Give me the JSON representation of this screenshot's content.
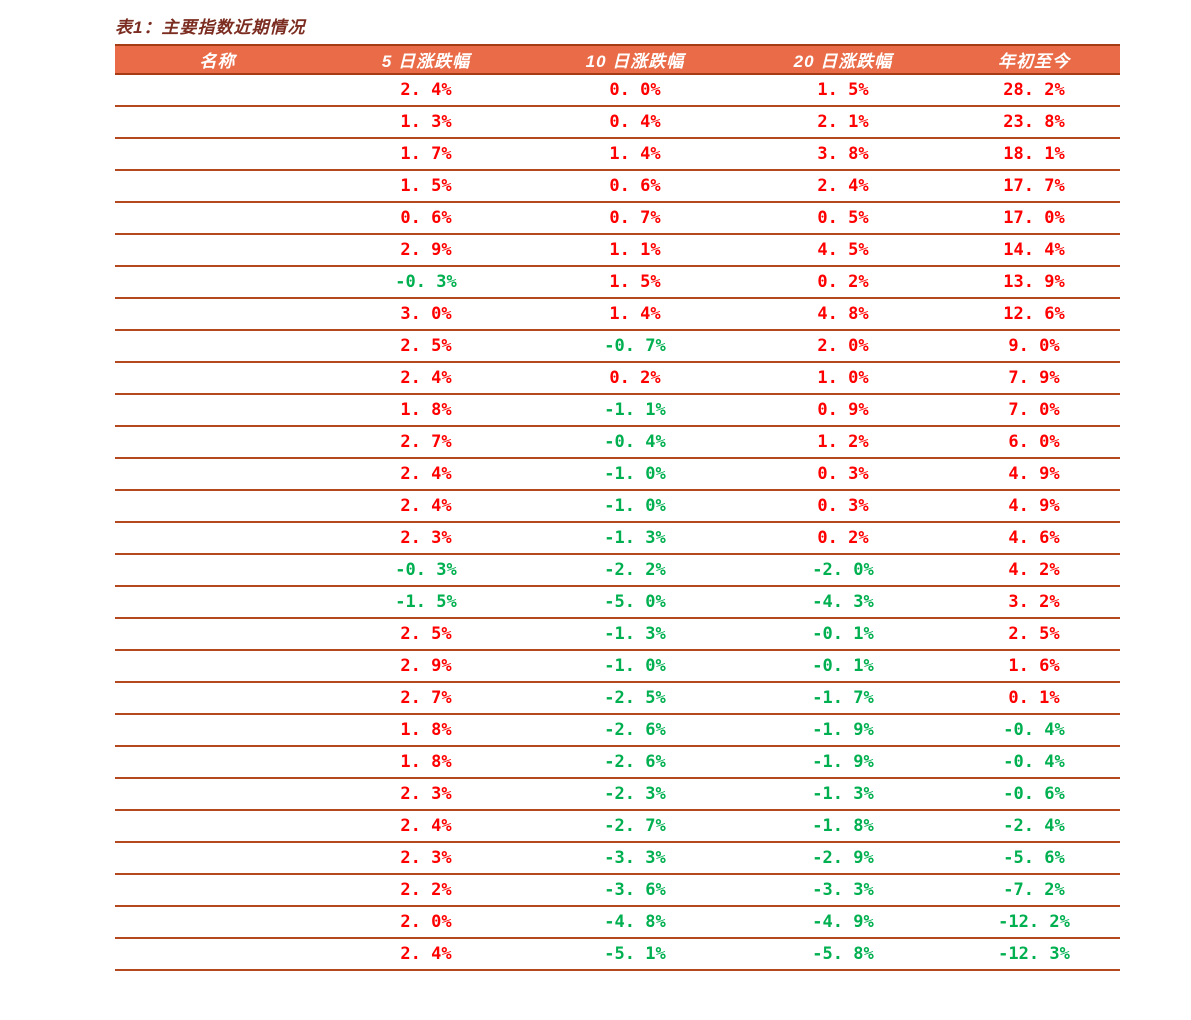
{
  "title": {
    "text": "表1：主要指数近期情况"
  },
  "colors": {
    "title": "#7C2D21",
    "header_bg": "#EA6B47",
    "header_text": "#FFFFFF",
    "header_border": "#A63C16",
    "row_border": "#B4481E",
    "positive": "#FF0000",
    "negative": "#00B050",
    "page_bg": "#FFFFFF"
  },
  "table": {
    "columns": [
      "名称",
      "5 日涨跌幅",
      "10 日涨跌幅",
      "20 日涨跌幅",
      "年初至今"
    ],
    "rows": [
      {
        "cells": [
          "",
          "2. 4%",
          "0. 0%",
          "1. 5%",
          "28. 2%"
        ]
      },
      {
        "cells": [
          "",
          "1. 3%",
          "0. 4%",
          "2. 1%",
          "23. 8%"
        ]
      },
      {
        "cells": [
          "",
          "1. 7%",
          "1. 4%",
          "3. 8%",
          "18. 1%"
        ]
      },
      {
        "cells": [
          "",
          "1. 5%",
          "0. 6%",
          "2. 4%",
          "17. 7%"
        ]
      },
      {
        "cells": [
          "",
          "0. 6%",
          "0. 7%",
          "0. 5%",
          "17. 0%"
        ]
      },
      {
        "cells": [
          "",
          "2. 9%",
          "1. 1%",
          "4. 5%",
          "14. 4%"
        ]
      },
      {
        "cells": [
          "",
          "-0. 3%",
          "1. 5%",
          "0. 2%",
          "13. 9%"
        ]
      },
      {
        "cells": [
          "",
          "3. 0%",
          "1. 4%",
          "4. 8%",
          "12. 6%"
        ]
      },
      {
        "cells": [
          "",
          "2. 5%",
          "-0. 7%",
          "2. 0%",
          "9. 0%"
        ]
      },
      {
        "cells": [
          "",
          "2. 4%",
          "0. 2%",
          "1. 0%",
          "7. 9%"
        ]
      },
      {
        "cells": [
          "",
          "1. 8%",
          "-1. 1%",
          "0. 9%",
          "7. 0%"
        ]
      },
      {
        "cells": [
          "",
          "2. 7%",
          "-0. 4%",
          "1. 2%",
          "6. 0%"
        ]
      },
      {
        "cells": [
          "",
          "2. 4%",
          "-1. 0%",
          "0. 3%",
          "4. 9%"
        ]
      },
      {
        "cells": [
          "",
          "2. 4%",
          "-1. 0%",
          "0. 3%",
          "4. 9%"
        ]
      },
      {
        "cells": [
          "",
          "2. 3%",
          "-1. 3%",
          "0. 2%",
          "4. 6%"
        ]
      },
      {
        "cells": [
          "",
          "-0. 3%",
          "-2. 2%",
          "-2. 0%",
          "4. 2%"
        ]
      },
      {
        "cells": [
          "",
          "-1. 5%",
          "-5. 0%",
          "-4. 3%",
          "3. 2%"
        ]
      },
      {
        "cells": [
          "",
          "2. 5%",
          "-1. 3%",
          "-0. 1%",
          "2. 5%"
        ]
      },
      {
        "cells": [
          "",
          "2. 9%",
          "-1. 0%",
          "-0. 1%",
          "1. 6%"
        ]
      },
      {
        "cells": [
          "",
          "2. 7%",
          "-2. 5%",
          "-1. 7%",
          "0. 1%"
        ]
      },
      {
        "cells": [
          "",
          "1. 8%",
          "-2. 6%",
          "-1. 9%",
          "-0. 4%"
        ]
      },
      {
        "cells": [
          "",
          "1. 8%",
          "-2. 6%",
          "-1. 9%",
          "-0. 4%"
        ]
      },
      {
        "cells": [
          "",
          "2. 3%",
          "-2. 3%",
          "-1. 3%",
          "-0. 6%"
        ]
      },
      {
        "cells": [
          "",
          "2. 4%",
          "-2. 7%",
          "-1. 8%",
          "-2. 4%"
        ]
      },
      {
        "cells": [
          "",
          "2. 3%",
          "-3. 3%",
          "-2. 9%",
          "-5. 6%"
        ]
      },
      {
        "cells": [
          "",
          "2. 2%",
          "-3. 6%",
          "-3. 3%",
          "-7. 2%"
        ]
      },
      {
        "cells": [
          "",
          "2. 0%",
          "-4. 8%",
          "-4. 9%",
          "-12. 2%"
        ]
      },
      {
        "cells": [
          "",
          "2. 4%",
          "-5. 1%",
          "-5. 8%",
          "-12. 3%"
        ]
      }
    ]
  }
}
